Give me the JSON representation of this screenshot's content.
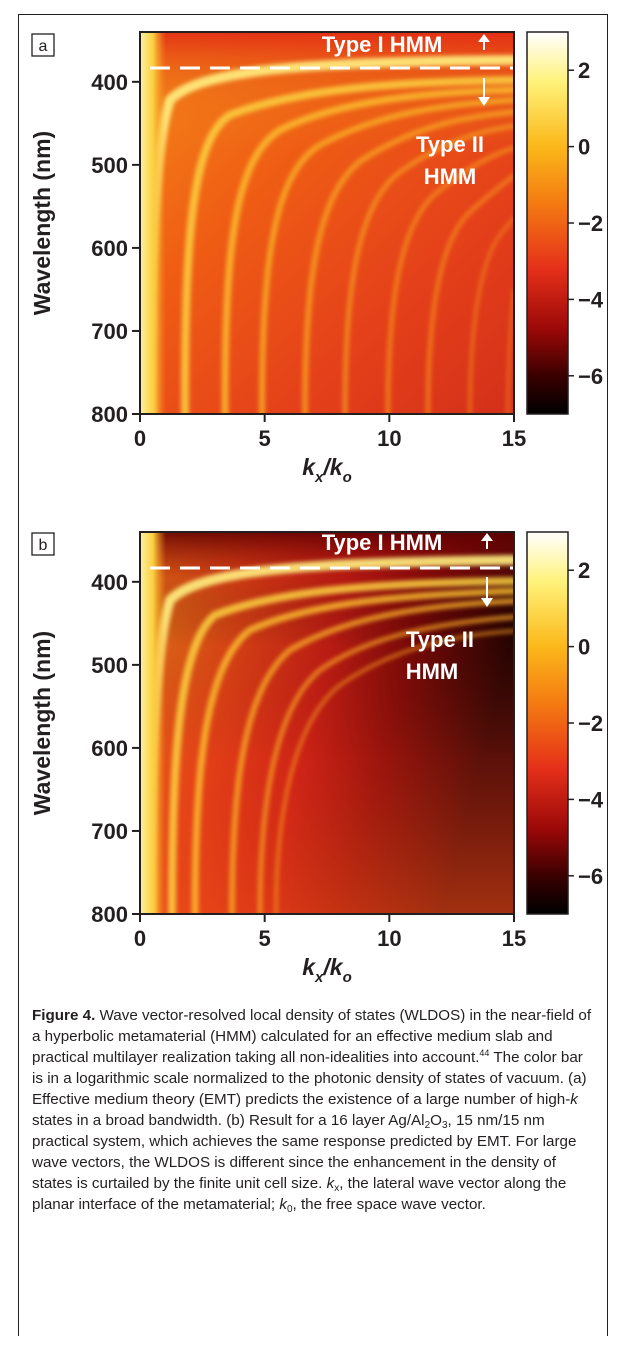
{
  "figure": {
    "panels": [
      {
        "id": "a",
        "label": "a",
        "region_labels": {
          "type1": "Type I HMM",
          "type2_line1": "Type II",
          "type2_line2": "HMM"
        },
        "ylabel": "Wavelength (nm)",
        "xlabel_main": "k",
        "xlabel_sub1": "x",
        "xlabel_slash": "/k",
        "xlabel_sub2": "o"
      },
      {
        "id": "b",
        "label": "b",
        "region_labels": {
          "type1": "Type I HMM",
          "type2_line1": "Type II",
          "type2_line2": "HMM"
        },
        "ylabel": "Wavelength (nm)",
        "xlabel_main": "k",
        "xlabel_sub1": "x",
        "xlabel_slash": "/k",
        "xlabel_sub2": "o"
      }
    ]
  },
  "chart_data": [
    {
      "type": "heatmap",
      "panel": "a",
      "x_ticks": [
        0,
        5,
        10,
        15
      ],
      "y_ticks": [
        400,
        500,
        600,
        700,
        800
      ],
      "xlim": [
        0,
        15
      ],
      "ylim": [
        340,
        800
      ],
      "y_inverted": true,
      "divider_wavelength": 375,
      "colorbar_ticks": [
        2,
        0,
        -2,
        -4,
        -6
      ],
      "colorbar_range": [
        -7,
        3
      ],
      "colorbar_scale": "log",
      "colors": [
        "#000000",
        "#5a0000",
        "#c00c0c",
        "#ee3a10",
        "#f77a10",
        "#fbb81a",
        "#fff060",
        "#ffffff"
      ]
    },
    {
      "type": "heatmap",
      "panel": "b",
      "x_ticks": [
        0,
        5,
        10,
        15
      ],
      "y_ticks": [
        400,
        500,
        600,
        700,
        800
      ],
      "xlim": [
        0,
        15
      ],
      "ylim": [
        340,
        800
      ],
      "y_inverted": true,
      "divider_wavelength": 375,
      "colorbar_ticks": [
        2,
        0,
        -2,
        -4,
        -6
      ],
      "colorbar_range": [
        -7,
        3
      ],
      "colorbar_scale": "log",
      "colors": [
        "#000000",
        "#5a0000",
        "#c00c0c",
        "#ee3a10",
        "#f77a10",
        "#fbb81a",
        "#fff060",
        "#ffffff"
      ]
    }
  ],
  "caption": {
    "label": "Figure 4.",
    "p1": " Wave vector-resolved local density of states (WLDOS) in the near-field of a hyperbolic metamaterial (HMM) calculated for an effective medium slab and practical multilayer realization taking all non-idealities into account.",
    "ref": "44",
    "p2": " The color bar is in a logarithmic scale normalized to the photonic density of states of vacuum. (a) Effective medium theory (EMT) predicts the existence of a large number of high-",
    "k1": "k",
    "p3": " states in a broad bandwidth. (b) Result for a 16 layer Ag/Al",
    "sub_al": "2",
    "o_char": "O",
    "sub_o": "3",
    "p4": ", 15 nm/15 nm practical system, which achieves the same response predicted by EMT. For large wave vectors, the WLDOS is different since the enhancement in the density of states is curtailed by the finite unit cell size. ",
    "kx_k": "k",
    "kx_sub": "x",
    "p5": ", the lateral wave vector along the planar interface of the metamaterial; ",
    "k0_k": "k",
    "k0_sub": "0",
    "p6": ", the free space wave vector."
  }
}
